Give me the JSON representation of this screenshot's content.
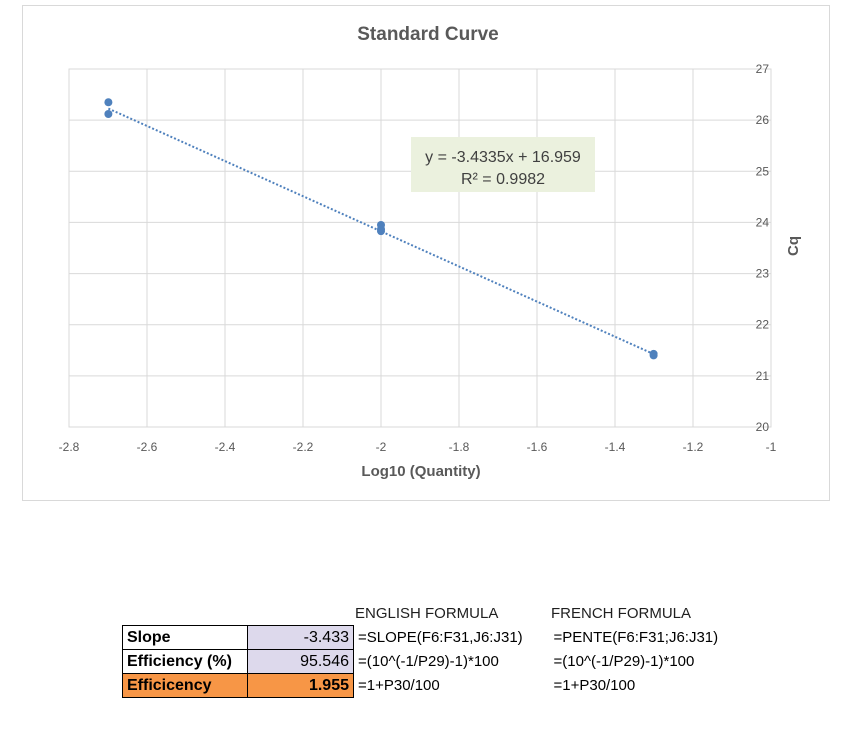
{
  "chart_data": {
    "type": "scatter",
    "title": "Standard Curve",
    "xlabel": "Log10 (Quantity)",
    "ylabel": "Cq",
    "xlim": [
      -2.8,
      -1
    ],
    "ylim": [
      20,
      27
    ],
    "x_ticks": [
      -2.8,
      -2.6,
      -2.4,
      -2.2,
      -2,
      -1.8,
      -1.6,
      -1.4,
      -1.2,
      -1
    ],
    "y_ticks": [
      20,
      21,
      22,
      23,
      24,
      25,
      26,
      27
    ],
    "x_tick_labels": [
      "-2.8",
      "-2.6",
      "-2.4",
      "-2.2",
      "-2",
      "-1.8",
      "-1.6",
      "-1.4",
      "-1.2",
      "-1"
    ],
    "y_tick_labels": [
      "20",
      "21",
      "22",
      "23",
      "24",
      "25",
      "26",
      "27"
    ],
    "y_axis_side": "right",
    "grid": true,
    "points": [
      {
        "x": -2.699,
        "y": 26.35
      },
      {
        "x": -2.699,
        "y": 26.12
      },
      {
        "x": -2.0,
        "y": 23.95
      },
      {
        "x": -2.0,
        "y": 23.87
      },
      {
        "x": -2.0,
        "y": 23.83
      },
      {
        "x": -1.301,
        "y": 21.43
      },
      {
        "x": -1.301,
        "y": 21.4
      }
    ],
    "trendline": {
      "slope": -3.4335,
      "intercept": 16.959,
      "x_range": [
        -2.699,
        -1.301
      ]
    },
    "annotation": {
      "equation": "y = -3.4335x + 16.959",
      "r2": "R² = 0.9982"
    },
    "colors": {
      "points": "#4f81bd",
      "trendline": "#4f81bd",
      "annotation_bg": "#ebf1de",
      "grid": "#d9d9d9"
    }
  },
  "table": {
    "header_english": "ENGLISH FORMULA",
    "header_french": "FRENCH FORMULA",
    "rows": [
      {
        "label": "Slope",
        "value": "-3.433",
        "formula_en": "=SLOPE(F6:F31,J6:J31)",
        "formula_fr": "=PENTE(F6:F31;J6:J31)"
      },
      {
        "label": "Efficiency (%)",
        "value": "95.546",
        "formula_en": "=(10^(-1/P29)-1)*100",
        "formula_fr": "=(10^(-1/P29)-1)*100"
      },
      {
        "label": "Efficicency",
        "value": "1.955",
        "formula_en": "=1+P30/100",
        "formula_fr": "=1+P30/100"
      }
    ],
    "colors": {
      "value_fill": "#ddd9ec",
      "highlight_fill": "#f79646"
    }
  }
}
